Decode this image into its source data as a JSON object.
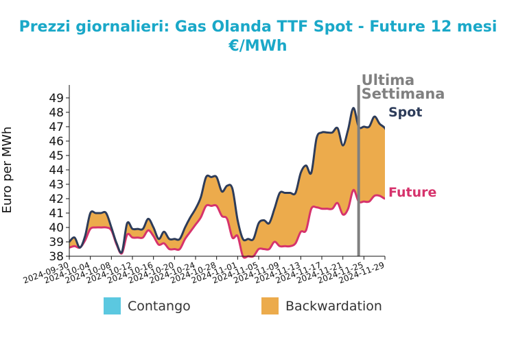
{
  "chart_data": {
    "type": "area",
    "title_line1": "Prezzi giornalieri: Gas Olanda TTF Spot - Future 12 mesi",
    "title_line2": "€/MWh",
    "ylabel": "Euro per MWh",
    "ylim": [
      38,
      49.9
    ],
    "yticks": [
      38,
      39,
      40,
      41,
      42,
      43,
      44,
      45,
      46,
      47,
      48,
      49
    ],
    "xlim": [
      "2024-09-30",
      "2024-11-29"
    ],
    "xticks": [
      "2024-09-30",
      "2024-10-04",
      "2024-10-08",
      "2024-10-12",
      "2024-10-16",
      "2024-10-20",
      "2024-10-24",
      "2024-10-28",
      "2024-11-01",
      "2024-11-05",
      "2024-11-09",
      "2024-11-13",
      "2024-11-17",
      "2024-11-21",
      "2024-11-25",
      "2024-11-29"
    ],
    "series": [
      {
        "name": "Spot",
        "color": "#2d3c5a",
        "points": [
          [
            "2024-09-30",
            39.0
          ],
          [
            "2024-10-01",
            39.3
          ],
          [
            "2024-10-02",
            38.6
          ],
          [
            "2024-10-03",
            39.4
          ],
          [
            "2024-10-04",
            41.0
          ],
          [
            "2024-10-05",
            41.0
          ],
          [
            "2024-10-06",
            41.0
          ],
          [
            "2024-10-07",
            41.0
          ],
          [
            "2024-10-08",
            40.0
          ],
          [
            "2024-10-09",
            38.9
          ],
          [
            "2024-10-10",
            38.3
          ],
          [
            "2024-10-11",
            40.3
          ],
          [
            "2024-10-12",
            39.9
          ],
          [
            "2024-10-13",
            39.9
          ],
          [
            "2024-10-14",
            39.9
          ],
          [
            "2024-10-15",
            40.6
          ],
          [
            "2024-10-16",
            40.0
          ],
          [
            "2024-10-17",
            39.2
          ],
          [
            "2024-10-18",
            39.7
          ],
          [
            "2024-10-19",
            39.2
          ],
          [
            "2024-10-20",
            39.2
          ],
          [
            "2024-10-21",
            39.2
          ],
          [
            "2024-10-22",
            40.0
          ],
          [
            "2024-10-23",
            40.7
          ],
          [
            "2024-10-24",
            41.3
          ],
          [
            "2024-10-25",
            42.1
          ],
          [
            "2024-10-26",
            43.5
          ],
          [
            "2024-10-27",
            43.5
          ],
          [
            "2024-10-28",
            43.5
          ],
          [
            "2024-10-29",
            42.5
          ],
          [
            "2024-10-30",
            42.9
          ],
          [
            "2024-10-31",
            42.7
          ],
          [
            "2024-11-01",
            40.5
          ],
          [
            "2024-11-02",
            39.2
          ],
          [
            "2024-11-03",
            39.2
          ],
          [
            "2024-11-04",
            39.2
          ],
          [
            "2024-11-05",
            40.3
          ],
          [
            "2024-11-06",
            40.5
          ],
          [
            "2024-11-07",
            40.3
          ],
          [
            "2024-11-08",
            41.3
          ],
          [
            "2024-11-09",
            42.4
          ],
          [
            "2024-11-10",
            42.4
          ],
          [
            "2024-11-11",
            42.4
          ],
          [
            "2024-11-12",
            42.4
          ],
          [
            "2024-11-13",
            43.8
          ],
          [
            "2024-11-14",
            44.3
          ],
          [
            "2024-11-15",
            43.8
          ],
          [
            "2024-11-16",
            46.2
          ],
          [
            "2024-11-17",
            46.6
          ],
          [
            "2024-11-18",
            46.6
          ],
          [
            "2024-11-19",
            46.6
          ],
          [
            "2024-11-20",
            46.9
          ],
          [
            "2024-11-21",
            45.7
          ],
          [
            "2024-11-22",
            46.8
          ],
          [
            "2024-11-23",
            48.3
          ],
          [
            "2024-11-24",
            47.0
          ],
          [
            "2024-11-25",
            47.0
          ],
          [
            "2024-11-26",
            47.0
          ],
          [
            "2024-11-27",
            47.7
          ],
          [
            "2024-11-28",
            47.2
          ],
          [
            "2024-11-29",
            46.9
          ],
          [
            "2024-11-30",
            46.3
          ],
          [
            "2024-12-01",
            47.7
          ]
        ]
      },
      {
        "name": "Future",
        "color": "#d6336c",
        "points": [
          [
            "2024-09-30",
            38.6
          ],
          [
            "2024-10-01",
            38.7
          ],
          [
            "2024-10-02",
            38.6
          ],
          [
            "2024-10-03",
            39.1
          ],
          [
            "2024-10-04",
            39.9
          ],
          [
            "2024-10-05",
            40.0
          ],
          [
            "2024-10-06",
            40.0
          ],
          [
            "2024-10-07",
            40.0
          ],
          [
            "2024-10-08",
            39.8
          ],
          [
            "2024-10-09",
            38.8
          ],
          [
            "2024-10-10",
            38.2
          ],
          [
            "2024-10-11",
            39.5
          ],
          [
            "2024-10-12",
            39.3
          ],
          [
            "2024-10-13",
            39.3
          ],
          [
            "2024-10-14",
            39.3
          ],
          [
            "2024-10-15",
            39.8
          ],
          [
            "2024-10-16",
            39.4
          ],
          [
            "2024-10-17",
            38.8
          ],
          [
            "2024-10-18",
            38.9
          ],
          [
            "2024-10-19",
            38.5
          ],
          [
            "2024-10-20",
            38.5
          ],
          [
            "2024-10-21",
            38.5
          ],
          [
            "2024-10-22",
            39.2
          ],
          [
            "2024-10-23",
            39.7
          ],
          [
            "2024-10-24",
            40.2
          ],
          [
            "2024-10-25",
            40.7
          ],
          [
            "2024-10-26",
            41.5
          ],
          [
            "2024-10-27",
            41.5
          ],
          [
            "2024-10-28",
            41.5
          ],
          [
            "2024-10-29",
            40.8
          ],
          [
            "2024-10-30",
            40.6
          ],
          [
            "2024-10-31",
            39.3
          ],
          [
            "2024-11-01",
            39.4
          ],
          [
            "2024-11-02",
            38.0
          ],
          [
            "2024-11-03",
            38.0
          ],
          [
            "2024-11-04",
            38.0
          ],
          [
            "2024-11-05",
            38.5
          ],
          [
            "2024-11-06",
            38.5
          ],
          [
            "2024-11-07",
            38.5
          ],
          [
            "2024-11-08",
            39.0
          ],
          [
            "2024-11-09",
            38.7
          ],
          [
            "2024-11-10",
            38.7
          ],
          [
            "2024-11-11",
            38.7
          ],
          [
            "2024-11-12",
            38.9
          ],
          [
            "2024-11-13",
            39.7
          ],
          [
            "2024-11-14",
            39.8
          ],
          [
            "2024-11-15",
            41.3
          ],
          [
            "2024-11-16",
            41.4
          ],
          [
            "2024-11-17",
            41.3
          ],
          [
            "2024-11-18",
            41.3
          ],
          [
            "2024-11-19",
            41.3
          ],
          [
            "2024-11-20",
            41.7
          ],
          [
            "2024-11-21",
            40.9
          ],
          [
            "2024-11-22",
            41.3
          ],
          [
            "2024-11-23",
            42.6
          ],
          [
            "2024-11-24",
            41.8
          ],
          [
            "2024-11-25",
            41.8
          ],
          [
            "2024-11-26",
            41.8
          ],
          [
            "2024-11-27",
            42.2
          ],
          [
            "2024-11-28",
            42.2
          ],
          [
            "2024-11-29",
            42.0
          ],
          [
            "2024-11-30",
            42.0
          ],
          [
            "2024-12-01",
            42.2
          ]
        ]
      }
    ],
    "marker": {
      "date": "2024-11-24",
      "label_line1": "Ultima",
      "label_line2": "Settimana",
      "color": "#808080"
    },
    "legend": {
      "placement": "bottom",
      "items": [
        {
          "label": "Contango",
          "color": "#5bc8e0"
        },
        {
          "label": "Backwardation",
          "color": "#ecab4c"
        }
      ]
    }
  }
}
